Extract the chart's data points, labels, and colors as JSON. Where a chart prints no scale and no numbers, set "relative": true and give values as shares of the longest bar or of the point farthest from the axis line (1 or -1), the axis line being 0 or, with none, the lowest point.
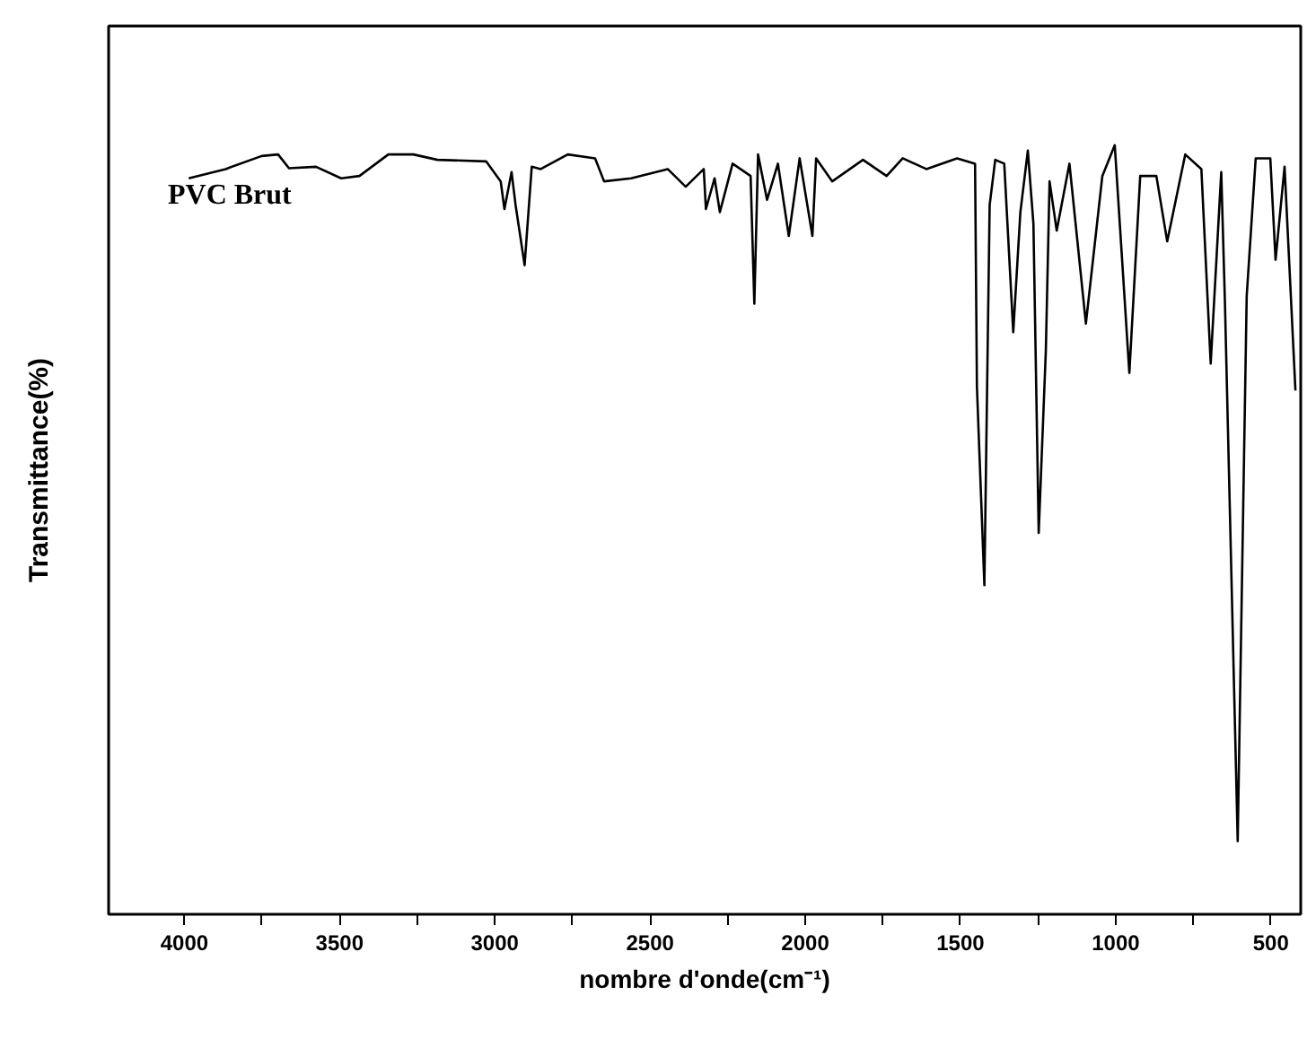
{
  "chart_data": {
    "type": "line",
    "relative": true,
    "xlabel": "nombre d'onde(cm⁻¹)",
    "ylabel": "Transmittance(%)",
    "annotations": [
      "PVC Brut"
    ],
    "xlim": [
      4244,
      404
    ],
    "xticks": [
      4000,
      {
        "value": 3750,
        "label": null
      },
      3500,
      {
        "value": 3250,
        "label": null
      },
      3000,
      {
        "value": 2750,
        "label": null
      },
      2500,
      {
        "value": 2250,
        "label": null
      },
      2000,
      {
        "value": 1750,
        "label": null
      },
      1500,
      {
        "value": 1250,
        "label": null
      },
      1000,
      {
        "value": 750,
        "label": null
      },
      500
    ],
    "grid": false,
    "marker": "none",
    "line_style": "solid",
    "series": [
      {
        "color": "#000000",
        "x": [
          3986,
          3867,
          3751,
          3698,
          3663,
          3576,
          3495,
          3436,
          3343,
          3262,
          3185,
          3028,
          2981,
          2969,
          2946,
          2933,
          2904,
          2881,
          2852,
          2765,
          2677,
          2648,
          2561,
          2443,
          2385,
          2327,
          2320,
          2292,
          2275,
          2234,
          2176,
          2164,
          2152,
          2123,
          2088,
          2053,
          2018,
          1977,
          1965,
          1913,
          1814,
          1738,
          1686,
          1610,
          1511,
          1453,
          1447,
          1423,
          1406,
          1388,
          1359,
          1330,
          1307,
          1283,
          1265,
          1248,
          1225,
          1213,
          1190,
          1149,
          1096,
          1043,
          1003,
          956,
          921,
          869,
          834,
          776,
          724,
          694,
          660,
          648,
          607,
          578,
          549,
          502,
          485,
          456,
          421
        ],
        "values": [
          0.957,
          0.969,
          0.986,
          0.988,
          0.97,
          0.972,
          0.957,
          0.96,
          0.988,
          0.988,
          0.981,
          0.979,
          0.953,
          0.917,
          0.965,
          0.922,
          0.844,
          0.972,
          0.969,
          0.988,
          0.983,
          0.953,
          0.957,
          0.969,
          0.946,
          0.969,
          0.917,
          0.957,
          0.913,
          0.976,
          0.96,
          0.794,
          0.988,
          0.929,
          0.976,
          0.882,
          0.983,
          0.882,
          0.983,
          0.953,
          0.981,
          0.96,
          0.983,
          0.969,
          0.983,
          0.976,
          0.686,
          0.428,
          0.922,
          0.981,
          0.976,
          0.757,
          0.913,
          0.993,
          0.898,
          0.496,
          0.733,
          0.953,
          0.889,
          0.976,
          0.768,
          0.96,
          1.0,
          0.704,
          0.96,
          0.96,
          0.875,
          0.988,
          0.969,
          0.716,
          0.965,
          0.794,
          0.095,
          0.804,
          0.983,
          0.983,
          0.851,
          0.972,
          0.681
        ]
      }
    ]
  }
}
